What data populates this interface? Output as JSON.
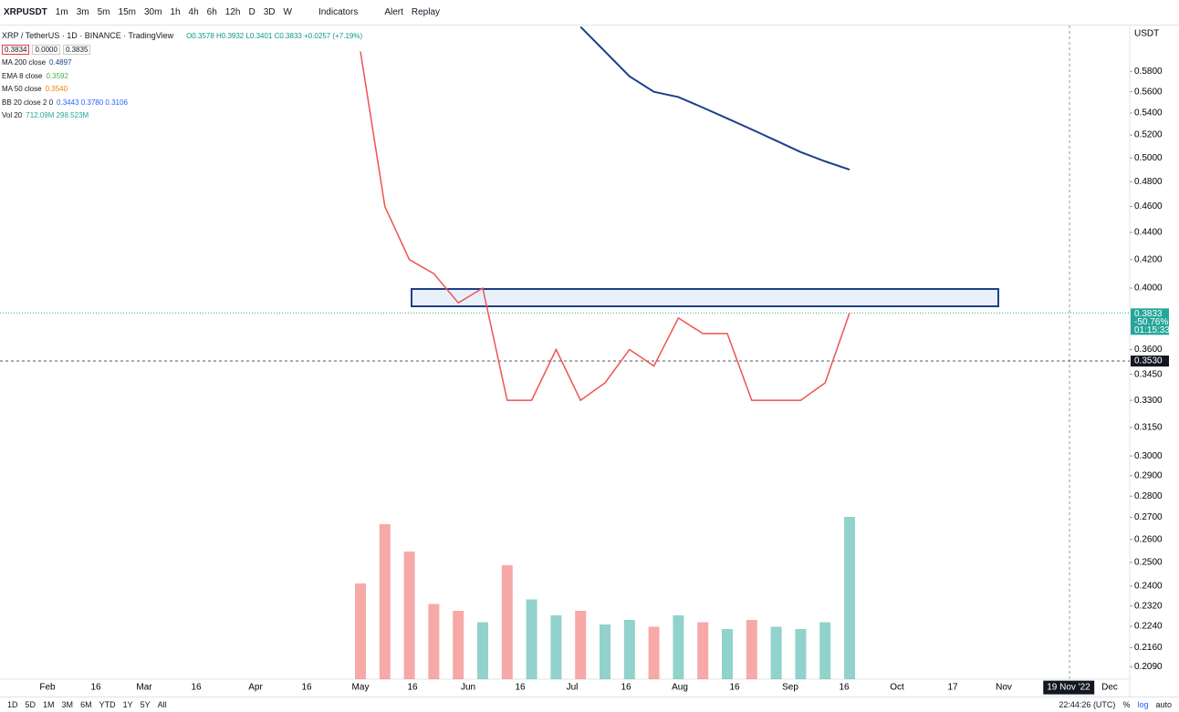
{
  "toolbar": {
    "symbol": "XRPUSDT",
    "intervals": [
      "1m",
      "3m",
      "5m",
      "15m",
      "30m",
      "1h",
      "4h",
      "6h",
      "12h",
      "D",
      "3D",
      "W"
    ],
    "indicators": "Indicators",
    "alert": "Alert",
    "replay": "Replay"
  },
  "legend": {
    "title": "XRP / TetherUS · 1D · BINANCE · TradingView",
    "ohlc": "O0.3578 H0.3932 L0.3401 C0.3833 +0.0257 (+7.19%)",
    "bid": "0.3834",
    "spread": "0.0000",
    "ask": "0.3835",
    "studies": [
      {
        "name": "MA 200 close",
        "value": "0.4897",
        "color": "#1e3f8a"
      },
      {
        "name": "EMA 8 close",
        "value": "0.3592",
        "color": "#4caf50"
      },
      {
        "name": "MA 50 close",
        "value": "0.3540",
        "color": "#f57c00"
      },
      {
        "name": "BB 20 close 2 0",
        "value": "0.3443 0.3780 0.3106",
        "color": "#2962ff"
      },
      {
        "name": "Vol 20",
        "value": "712.09M 298.523M",
        "color": "#26a69a"
      }
    ]
  },
  "chart": {
    "closes": [
      0.6,
      0.46,
      0.42,
      0.41,
      0.39,
      0.4,
      0.33,
      0.33,
      0.36,
      0.33,
      0.34,
      0.36,
      0.35,
      0.38,
      0.37,
      0.37,
      0.33,
      0.33,
      0.33,
      0.34,
      0.3833
    ],
    "ma200": [
      null,
      null,
      null,
      null,
      null,
      null,
      null,
      null,
      null,
      0.626,
      0.6,
      0.575,
      0.56,
      0.555,
      0.545,
      0.535,
      0.525,
      0.515,
      0.505,
      0.497,
      0.49
    ],
    "volumes": [
      420,
      680,
      560,
      330,
      300,
      250,
      500,
      350,
      280,
      300,
      240,
      260,
      230,
      280,
      250,
      220,
      260,
      230,
      220,
      250,
      712
    ],
    "price_axis": {
      "currency": "USDT",
      "ticks": [
        {
          "value": 0.58,
          "label": "0.5800"
        },
        {
          "value": 0.56,
          "label": "0.5600"
        },
        {
          "value": 0.54,
          "label": "0.5400"
        },
        {
          "value": 0.52,
          "label": "0.5200"
        },
        {
          "value": 0.5,
          "label": "0.5000"
        },
        {
          "value": 0.48,
          "label": "0.4800"
        },
        {
          "value": 0.46,
          "label": "0.4600"
        },
        {
          "value": 0.44,
          "label": "0.4400"
        },
        {
          "value": 0.42,
          "label": "0.4200"
        },
        {
          "value": 0.4,
          "label": "0.4000"
        },
        {
          "value": 0.36,
          "label": "0.3600"
        },
        {
          "value": 0.345,
          "label": "0.3450"
        },
        {
          "value": 0.33,
          "label": "0.3300"
        },
        {
          "value": 0.315,
          "label": "0.3150"
        },
        {
          "value": 0.3,
          "label": "0.3000"
        },
        {
          "value": 0.29,
          "label": "0.2900"
        },
        {
          "value": 0.28,
          "label": "0.2800"
        },
        {
          "value": 0.27,
          "label": "0.2700"
        },
        {
          "value": 0.26,
          "label": "0.2600"
        },
        {
          "value": 0.25,
          "label": "0.2500"
        },
        {
          "value": 0.24,
          "label": "0.2400"
        },
        {
          "value": 0.232,
          "label": "0.2320"
        },
        {
          "value": 0.224,
          "label": "0.2240"
        },
        {
          "value": 0.216,
          "label": "0.2160"
        },
        {
          "value": 0.209,
          "label": "0.2090"
        }
      ],
      "last_price": {
        "value": 0.3833,
        "label": "0.3833"
      },
      "change": "-50.76%",
      "countdown": "01:15:33",
      "crosshair": {
        "value": 0.353,
        "label": "0.3530"
      }
    },
    "time_axis": [
      "Feb",
      "16",
      "Mar",
      "16",
      "Apr",
      "16",
      "May",
      "16",
      "Jun",
      "16",
      "Jul",
      "16",
      "Aug",
      "16",
      "Sep",
      "16",
      "Oct",
      "17",
      "Nov",
      "19 Nov '22",
      "Dec"
    ]
  },
  "bottom": {
    "ranges": [
      "1D",
      "5D",
      "1M",
      "3M",
      "6M",
      "YTD",
      "1Y",
      "5Y",
      "All"
    ],
    "clock": "22:44:26 (UTC)",
    "percent": "%",
    "log": "log",
    "auto": "auto"
  }
}
